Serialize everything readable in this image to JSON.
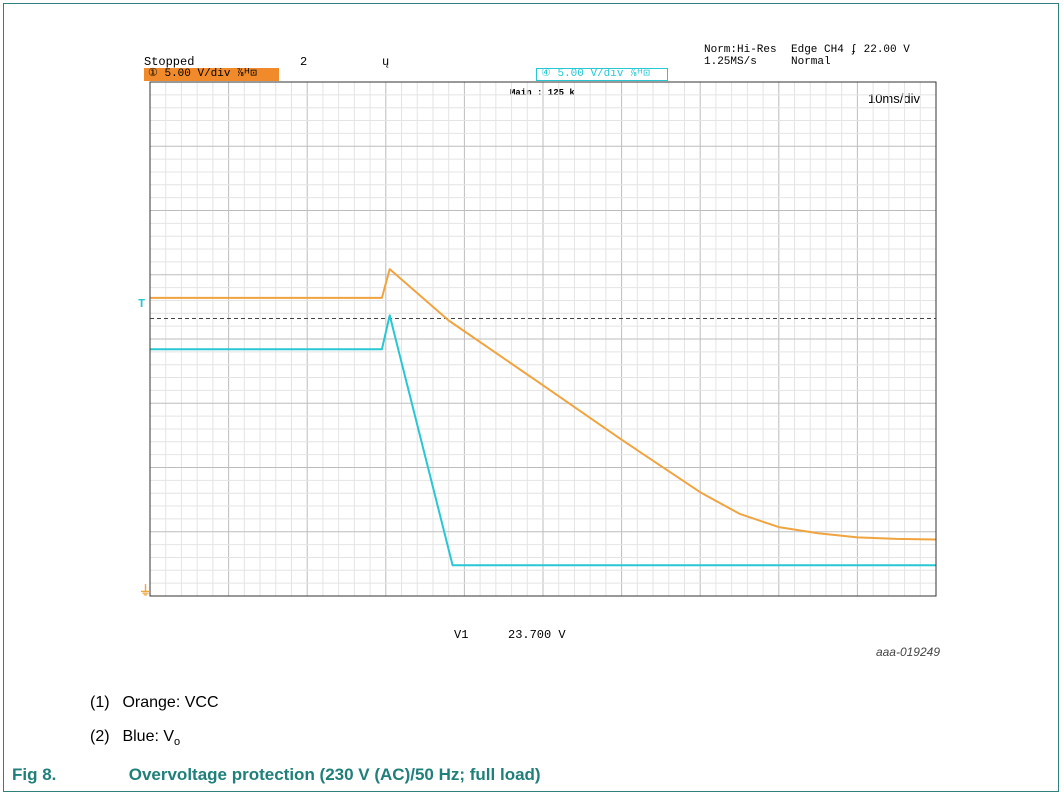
{
  "header": {
    "status": "Stopped",
    "marker_2": "2",
    "trigger_marker": "ų",
    "acq_mode": "Norm:Hi-Res",
    "sample_rate": "1.25MS/s",
    "trigger_setup": "Edge CH4 ʄ 22.00 V",
    "trigger_mode": "Normal",
    "ch1_scale": "① 5.00 V/div ⅞ᴴ⊡",
    "ch4_scale": "④ 5.00 V/div ⅞ᴴ⊡",
    "record_length": "Main : 125 k",
    "time_div": "10ms/div"
  },
  "cursor": {
    "name": "V1",
    "value": "23.700 V"
  },
  "figure_id": "aaa-019249",
  "legend": [
    {
      "num": "(1)",
      "text": "Orange: VCC"
    },
    {
      "num": "(2)",
      "text": "Blue: V",
      "sub": "o"
    }
  ],
  "caption": {
    "fig": "Fig 8.",
    "text": "Overvoltage protection (230 V (AC)/50 Hz; full load)"
  },
  "indicators": {
    "trigger_level": "T",
    "ground": "⏚"
  },
  "colors": {
    "vcc": "#f0a440",
    "vo": "#27c7d3",
    "grid": "#c8c8c8",
    "accent": "#1f7f79"
  },
  "chart_data": {
    "type": "line",
    "xlabel": "",
    "ylabel": "",
    "xlim": [
      0,
      100
    ],
    "ylim": [
      -5,
      45
    ],
    "time_unit": "ms",
    "volt_unit": "V",
    "trigger_level": 22.0,
    "series": [
      {
        "name": "VCC",
        "color": "#f0a440",
        "x": [
          0,
          29.5,
          30.5,
          38,
          50,
          60,
          70,
          75,
          80,
          85,
          90,
          95,
          100
        ],
        "y": [
          24.0,
          24.0,
          26.8,
          21.8,
          15.5,
          10.2,
          5.1,
          3.0,
          1.7,
          1.1,
          0.7,
          0.55,
          0.5
        ]
      },
      {
        "name": "Vo",
        "color": "#27c7d3",
        "x": [
          0,
          29.5,
          30.5,
          38.5,
          100
        ],
        "y": [
          19.0,
          19.0,
          22.3,
          -2.0,
          -2.0
        ]
      }
    ]
  }
}
